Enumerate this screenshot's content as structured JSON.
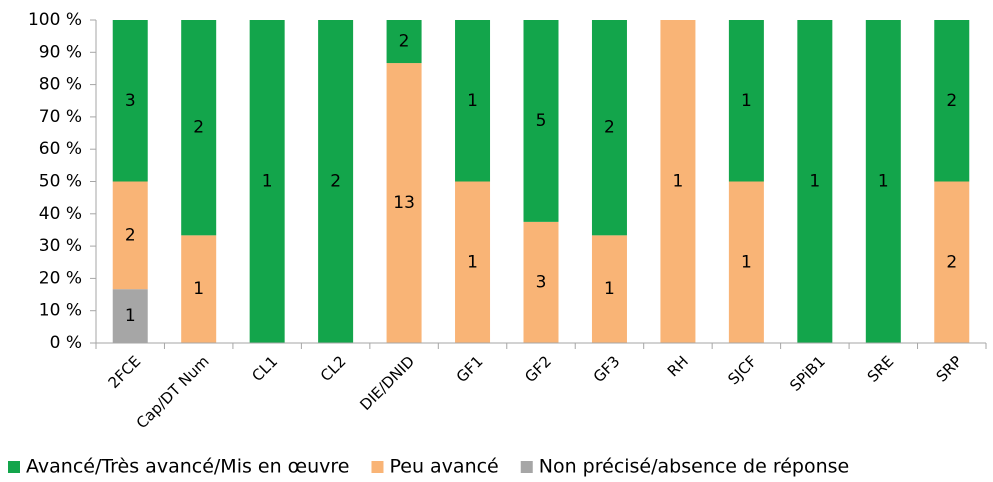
{
  "chart_data": {
    "type": "bar",
    "stacking": "percent",
    "categories": [
      "2FCE",
      "Cap/DT Num",
      "CL1",
      "CL2",
      "DIE/DNID",
      "GF1",
      "GF2",
      "GF3",
      "RH",
      "SJCF",
      "SPiB1",
      "SRE",
      "SRP"
    ],
    "series": [
      {
        "name": "Avancé/Très avancé/Mis en œuvre",
        "color": "#13a54b",
        "values": [
          3,
          2,
          1,
          2,
          2,
          1,
          5,
          2,
          null,
          1,
          1,
          1,
          2
        ]
      },
      {
        "name": "Peu avancé",
        "color": "#f9b476",
        "values": [
          2,
          1,
          null,
          null,
          13,
          1,
          3,
          1,
          1,
          1,
          null,
          null,
          2
        ]
      },
      {
        "name": "Non précisé/absence de réponse",
        "color": "#a6a6a6",
        "values": [
          1,
          null,
          null,
          null,
          null,
          null,
          null,
          null,
          null,
          null,
          null,
          null,
          null
        ]
      }
    ],
    "ylim": [
      0,
      100
    ],
    "yticks": [
      {
        "value": 0,
        "label": "0 %"
      },
      {
        "value": 10,
        "label": "10 %"
      },
      {
        "value": 20,
        "label": "20 %"
      },
      {
        "value": 30,
        "label": "30 %"
      },
      {
        "value": 40,
        "label": "40 %"
      },
      {
        "value": 50,
        "label": "50 %"
      },
      {
        "value": 60,
        "label": "60 %"
      },
      {
        "value": 70,
        "label": "70 %"
      },
      {
        "value": 80,
        "label": "80 %"
      },
      {
        "value": 90,
        "label": "90 %"
      },
      {
        "value": 100,
        "label": "100 %"
      }
    ],
    "legend": "bottom"
  }
}
